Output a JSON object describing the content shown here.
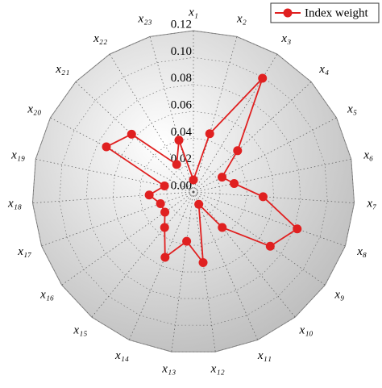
{
  "chart_data": {
    "type": "radar",
    "categories": [
      "x₁",
      "x₂",
      "x₃",
      "x₄",
      "x₅",
      "x₆",
      "x₇",
      "x₈",
      "x₉",
      "x₁₀",
      "x₁₁",
      "x₁₂",
      "x₁₃",
      "x₁₄",
      "x₁₅",
      "x₁₆",
      "x₁₇",
      "x₁₈",
      "x₁₉",
      "x₂₀",
      "x₂₁",
      "x₂₂",
      "x₂₃"
    ],
    "series": [
      {
        "name": "Index weight",
        "color": "#e02020",
        "values": [
          0.009,
          0.045,
          0.099,
          0.045,
          0.024,
          0.031,
          0.052,
          0.082,
          0.07,
          0.034,
          0.01,
          0.053,
          0.037,
          0.053,
          0.034,
          0.026,
          0.026,
          0.033,
          0.022,
          0.073,
          0.063,
          0.024,
          0.04
        ]
      }
    ],
    "ylim": [
      0,
      0.12
    ],
    "yticks": [
      {
        "value": 0,
        "label": "0.00"
      },
      {
        "value": 0.02,
        "label": "0.02"
      },
      {
        "value": 0.04,
        "label": "0.04"
      },
      {
        "value": 0.06,
        "label": "0.06"
      },
      {
        "value": 0.08,
        "label": "0.08"
      },
      {
        "value": 0.1,
        "label": "0.10"
      },
      {
        "value": 0.12,
        "label": "0.12"
      }
    ],
    "legend": "top-right"
  }
}
